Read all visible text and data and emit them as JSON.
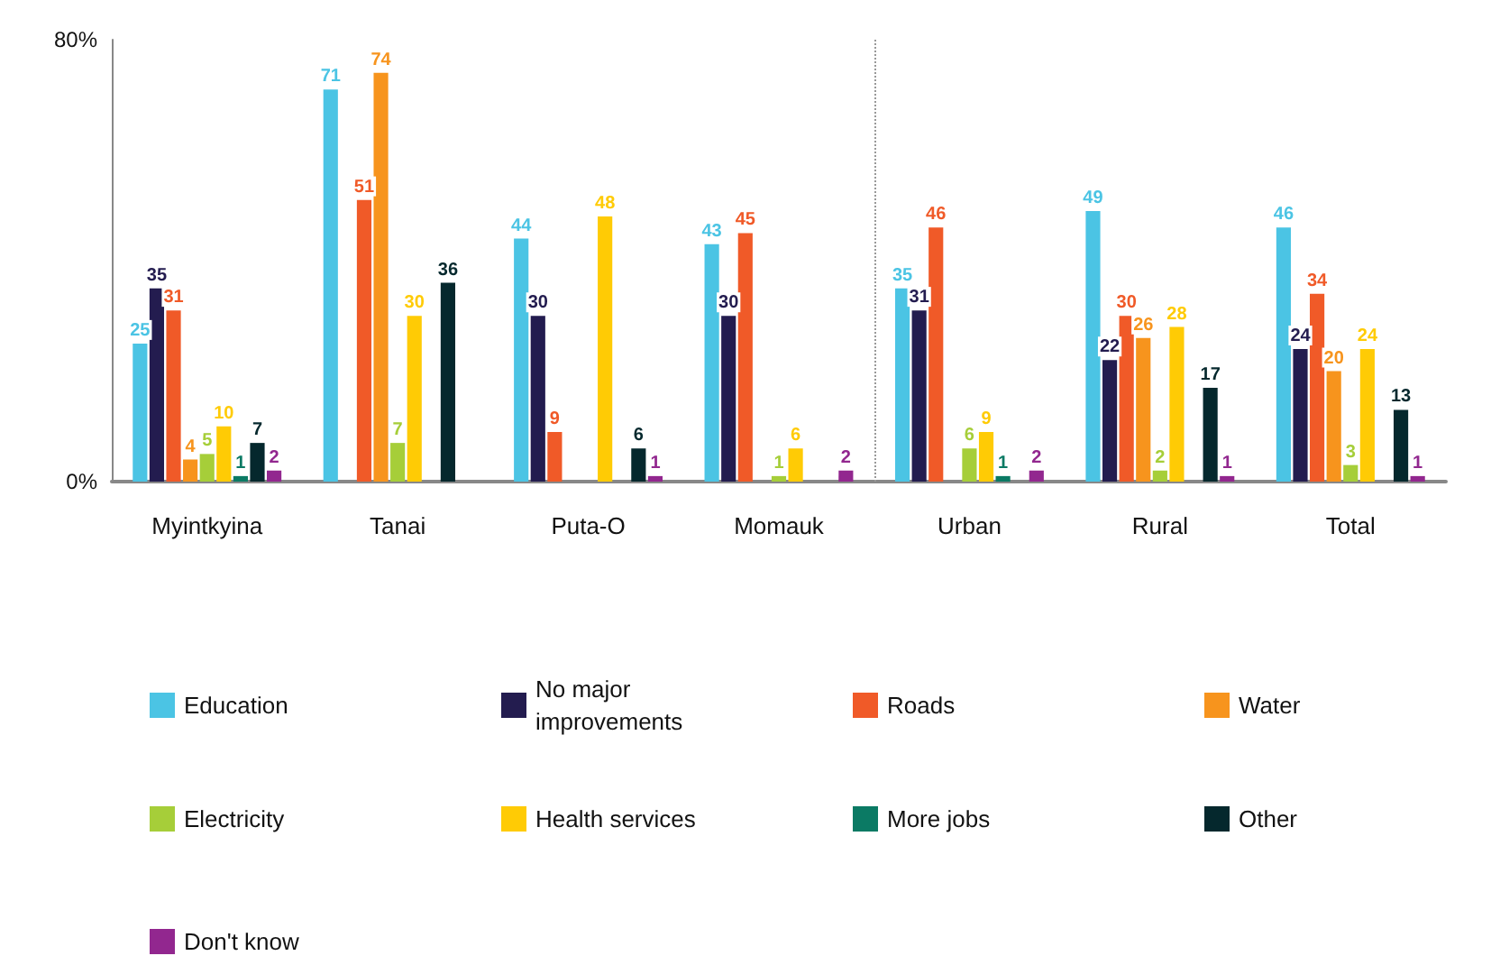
{
  "chart_data": {
    "type": "bar",
    "categories": [
      "Myintkyina",
      "Tanai",
      "Puta-O",
      "Momauk",
      "Urban",
      "Rural",
      "Total"
    ],
    "series": [
      {
        "name": "Education",
        "color": "#4bc4e4",
        "values": [
          25,
          71,
          44,
          43,
          35,
          49,
          46
        ]
      },
      {
        "name": "No major improvements",
        "color": "#231c4f",
        "values": [
          35,
          null,
          30,
          30,
          31,
          22,
          24
        ]
      },
      {
        "name": "Roads",
        "color": "#f05a28",
        "values": [
          31,
          51,
          9,
          45,
          46,
          30,
          34
        ]
      },
      {
        "name": "Water",
        "color": "#f7941d",
        "values": [
          4,
          74,
          null,
          null,
          null,
          26,
          20
        ]
      },
      {
        "name": "Electricity",
        "color": "#a6ce39",
        "values": [
          5,
          7,
          null,
          1,
          6,
          2,
          3
        ]
      },
      {
        "name": "Health services",
        "color": "#ffcb05",
        "values": [
          10,
          30,
          48,
          6,
          9,
          28,
          24
        ]
      },
      {
        "name": "More jobs",
        "color": "#0b7a64",
        "values": [
          1,
          null,
          null,
          null,
          1,
          null,
          null
        ]
      },
      {
        "name": "Other",
        "color": "#05282d",
        "values": [
          7,
          36,
          6,
          null,
          null,
          17,
          13
        ]
      },
      {
        "name": "Don't know",
        "color": "#92278f",
        "values": [
          2,
          null,
          1,
          2,
          2,
          1,
          1
        ]
      }
    ],
    "ylim": [
      0,
      80
    ],
    "yticks": [
      {
        "value": 0,
        "label": "0%"
      },
      {
        "value": 80,
        "label": "80%"
      }
    ],
    "data_labels": true,
    "grid": false,
    "legend": "bottom"
  }
}
